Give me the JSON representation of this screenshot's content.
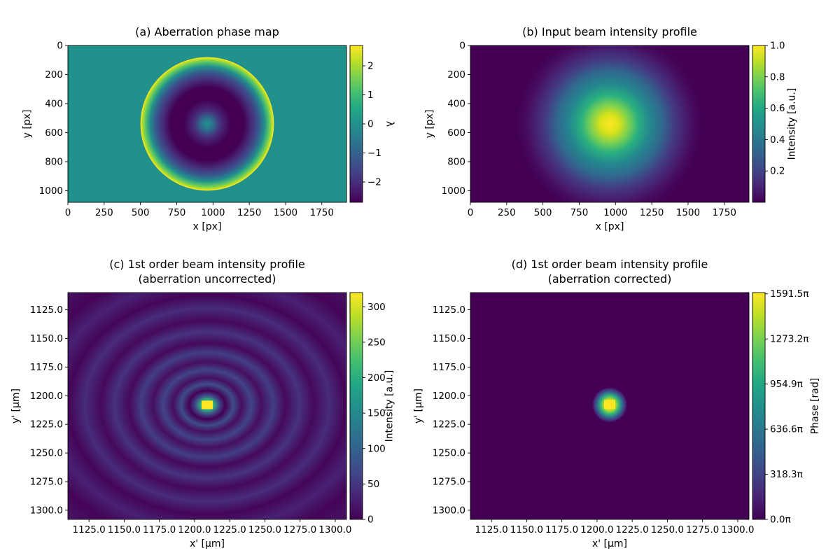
{
  "chart_data": [
    {
      "type": "heatmap",
      "title": "(a) Aberration phase map",
      "xlabel": "x [px]",
      "ylabel": "y [px]",
      "xlim": [
        0,
        1920
      ],
      "ylim": [
        1080,
        0
      ],
      "xticks": [
        "0",
        "250",
        "500",
        "750",
        "1000",
        "1250",
        "1500",
        "1750"
      ],
      "yticks": [
        "0",
        "200",
        "400",
        "600",
        "800",
        "1000"
      ],
      "colorbar": {
        "label": "λ",
        "range": [
          -2.7,
          2.7
        ],
        "ticks": [
          "−2",
          "−1",
          "0",
          "1",
          "2"
        ]
      },
      "pupil": {
        "center": [
          960,
          540
        ],
        "radius": 460
      },
      "colormap": "viridis"
    },
    {
      "type": "heatmap",
      "title": "(b) Input beam intensity profile",
      "xlabel": "x [px]",
      "ylabel": "y [px]",
      "xlim": [
        0,
        1920
      ],
      "ylim": [
        1080,
        0
      ],
      "xticks": [
        "0",
        "250",
        "500",
        "750",
        "1000",
        "1250",
        "1500",
        "1750"
      ],
      "yticks": [
        "0",
        "200",
        "400",
        "600",
        "800",
        "1000"
      ],
      "colorbar": {
        "label": "Intensity [a.u.]",
        "range": [
          0,
          1.0
        ],
        "ticks": [
          "0.2",
          "0.4",
          "0.6",
          "0.8",
          "1.0"
        ]
      },
      "beam": {
        "center": [
          960,
          540
        ],
        "sigma": 300
      },
      "colormap": "viridis"
    },
    {
      "type": "heatmap",
      "title": [
        "(c) 1st order beam intensity profile",
        "(aberration uncorrected)"
      ],
      "xlabel": "x' [µm]",
      "ylabel": "y' [µm]",
      "xlim": [
        1110,
        1308
      ],
      "ylim": [
        1308,
        1110
      ],
      "xticks": [
        "1125.0",
        "1150.0",
        "1175.0",
        "1200.0",
        "1225.0",
        "1250.0",
        "1275.0",
        "1300.0"
      ],
      "yticks": [
        "1300.0",
        "1275.0",
        "1250.0",
        "1225.0",
        "1200.0",
        "1175.0",
        "1150.0",
        "1125.0"
      ],
      "colorbar": {
        "label": "Intensity [a.u.]",
        "range": [
          0,
          320
        ],
        "ticks": [
          "0",
          "50",
          "100",
          "150",
          "200",
          "250",
          "300"
        ]
      },
      "peak": {
        "center": [
          1209,
          1208
        ],
        "value": 320
      },
      "colormap": "viridis"
    },
    {
      "type": "heatmap",
      "title": [
        "(d) 1st order beam intensity profile",
        "(aberration corrected)"
      ],
      "xlabel": "x' [µm]",
      "ylabel": "y' [µm]",
      "xlim": [
        1110,
        1308
      ],
      "ylim": [
        1308,
        1110
      ],
      "xticks": [
        "1125.0",
        "1150.0",
        "1175.0",
        "1200.0",
        "1225.0",
        "1250.0",
        "1275.0",
        "1300.0"
      ],
      "yticks": [
        "1300.0",
        "1275.0",
        "1250.0",
        "1225.0",
        "1200.0",
        "1175.0",
        "1150.0",
        "1125.0"
      ],
      "colorbar": {
        "label": "Phase [rad]",
        "range": [
          0,
          1600
        ],
        "ticks": [
          "0.0π",
          "318.3π",
          "636.6π",
          "954.9π",
          "1273.2π",
          "1591.5π"
        ]
      },
      "peak": {
        "center": [
          1209,
          1208
        ],
        "value": 1600
      },
      "colormap": "viridis"
    }
  ]
}
